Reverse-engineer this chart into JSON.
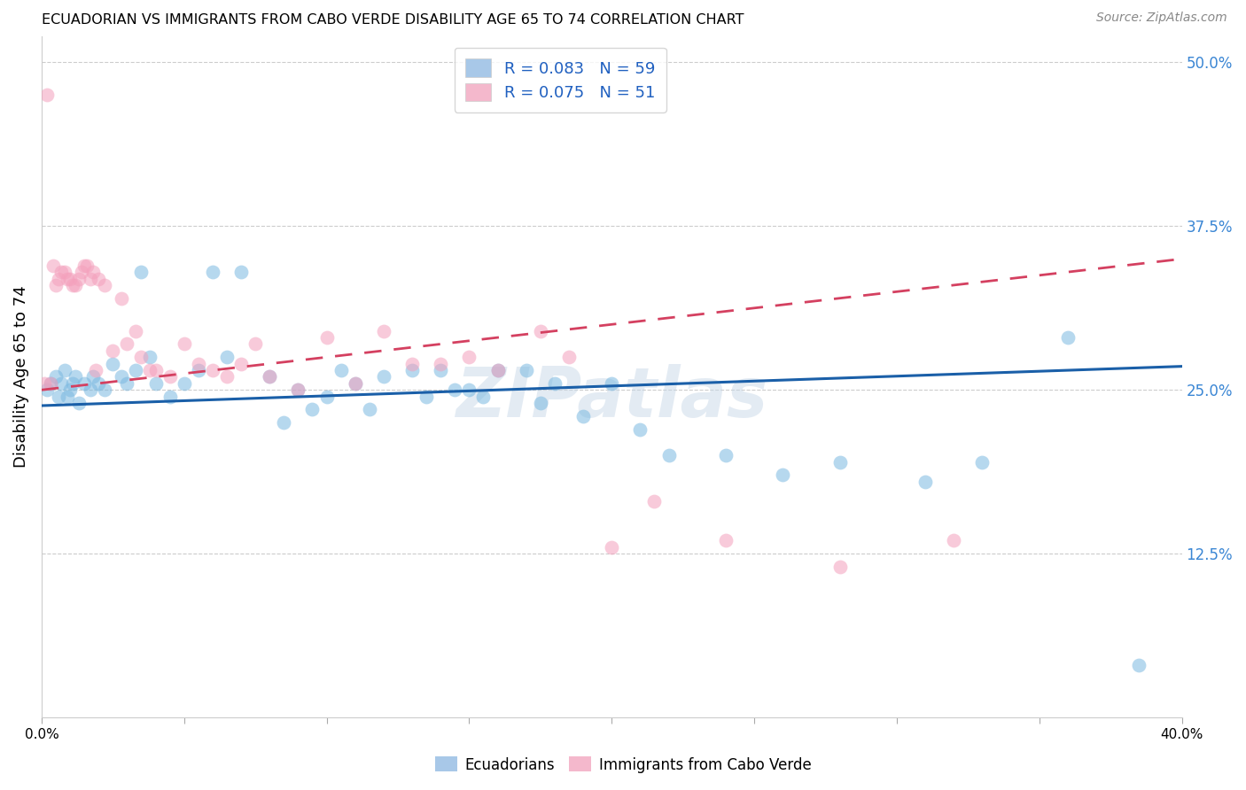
{
  "title": "ECUADORIAN VS IMMIGRANTS FROM CABO VERDE DISABILITY AGE 65 TO 74 CORRELATION CHART",
  "source": "Source: ZipAtlas.com",
  "ylabel": "Disability Age 65 to 74",
  "xlim": [
    0.0,
    0.4
  ],
  "ylim": [
    0.0,
    0.52
  ],
  "ytick_labels_right": [
    "50.0%",
    "37.5%",
    "25.0%",
    "12.5%"
  ],
  "ytick_positions_right": [
    0.5,
    0.375,
    0.25,
    0.125
  ],
  "legend1_color": "#a8c8e8",
  "legend2_color": "#f4b8cc",
  "R1": 0.083,
  "N1": 59,
  "R2": 0.075,
  "N2": 51,
  "blue_color": "#7ab8e0",
  "pink_color": "#f4a0bc",
  "trendline1_color": "#1a5fa8",
  "trendline2_color": "#d44060",
  "watermark": "ZIPatlas",
  "scatter_blue_x": [
    0.002,
    0.003,
    0.005,
    0.006,
    0.007,
    0.008,
    0.009,
    0.01,
    0.011,
    0.012,
    0.013,
    0.015,
    0.017,
    0.018,
    0.02,
    0.022,
    0.025,
    0.028,
    0.03,
    0.033,
    0.035,
    0.038,
    0.04,
    0.045,
    0.05,
    0.055,
    0.06,
    0.065,
    0.07,
    0.08,
    0.085,
    0.09,
    0.095,
    0.1,
    0.105,
    0.11,
    0.115,
    0.12,
    0.13,
    0.135,
    0.14,
    0.145,
    0.15,
    0.155,
    0.16,
    0.17,
    0.175,
    0.18,
    0.19,
    0.2,
    0.21,
    0.22,
    0.24,
    0.26,
    0.28,
    0.31,
    0.33,
    0.36,
    0.385
  ],
  "scatter_blue_y": [
    0.25,
    0.255,
    0.26,
    0.245,
    0.255,
    0.265,
    0.245,
    0.25,
    0.255,
    0.26,
    0.24,
    0.255,
    0.25,
    0.26,
    0.255,
    0.25,
    0.27,
    0.26,
    0.255,
    0.265,
    0.34,
    0.275,
    0.255,
    0.245,
    0.255,
    0.265,
    0.34,
    0.275,
    0.34,
    0.26,
    0.225,
    0.25,
    0.235,
    0.245,
    0.265,
    0.255,
    0.235,
    0.26,
    0.265,
    0.245,
    0.265,
    0.25,
    0.25,
    0.245,
    0.265,
    0.265,
    0.24,
    0.255,
    0.23,
    0.255,
    0.22,
    0.2,
    0.2,
    0.185,
    0.195,
    0.18,
    0.195,
    0.29,
    0.04
  ],
  "scatter_pink_x": [
    0.001,
    0.002,
    0.003,
    0.004,
    0.005,
    0.006,
    0.007,
    0.008,
    0.009,
    0.01,
    0.011,
    0.012,
    0.013,
    0.014,
    0.015,
    0.016,
    0.017,
    0.018,
    0.019,
    0.02,
    0.022,
    0.025,
    0.028,
    0.03,
    0.033,
    0.035,
    0.038,
    0.04,
    0.045,
    0.05,
    0.055,
    0.06,
    0.065,
    0.07,
    0.075,
    0.08,
    0.09,
    0.1,
    0.11,
    0.12,
    0.13,
    0.14,
    0.15,
    0.16,
    0.175,
    0.185,
    0.2,
    0.215,
    0.24,
    0.28,
    0.32
  ],
  "scatter_pink_y": [
    0.255,
    0.475,
    0.255,
    0.345,
    0.33,
    0.335,
    0.34,
    0.34,
    0.335,
    0.335,
    0.33,
    0.33,
    0.335,
    0.34,
    0.345,
    0.345,
    0.335,
    0.34,
    0.265,
    0.335,
    0.33,
    0.28,
    0.32,
    0.285,
    0.295,
    0.275,
    0.265,
    0.265,
    0.26,
    0.285,
    0.27,
    0.265,
    0.26,
    0.27,
    0.285,
    0.26,
    0.25,
    0.29,
    0.255,
    0.295,
    0.27,
    0.27,
    0.275,
    0.265,
    0.295,
    0.275,
    0.13,
    0.165,
    0.135,
    0.115,
    0.135
  ],
  "background_color": "#ffffff",
  "grid_color": "#cccccc",
  "trendline1_intercept": 0.238,
  "trendline1_slope": 0.075,
  "trendline2_intercept": 0.25,
  "trendline2_slope": 0.25
}
